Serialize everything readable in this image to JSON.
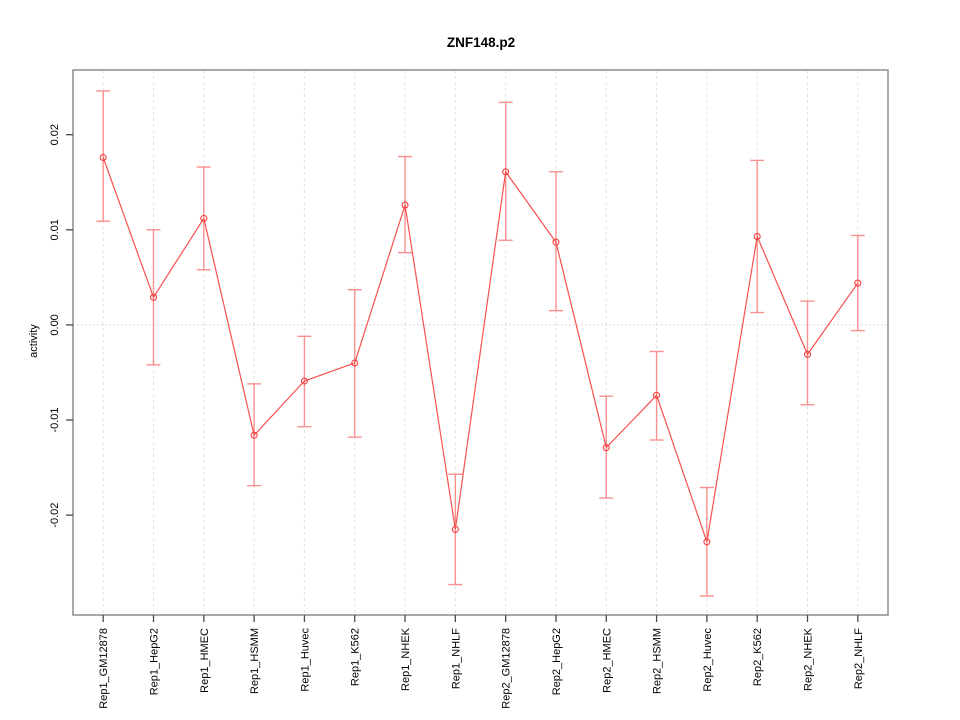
{
  "chart_data": {
    "type": "line",
    "title": "ZNF148.p2",
    "xlabel": "",
    "ylabel": "activity",
    "legend": "none",
    "point_style": "open-circle",
    "error_bars": true,
    "categories": [
      "Rep1_GM12878",
      "Rep1_HepG2",
      "Rep1_HMEC",
      "Rep1_HSMM",
      "Rep1_Huvec",
      "Rep1_K562",
      "Rep1_NHEK",
      "Rep1_NHLF",
      "Rep2_GM12878",
      "Rep2_HepG2",
      "Rep2_HMEC",
      "Rep2_HSMM",
      "Rep2_Huvec",
      "Rep2_K562",
      "Rep2_NHEK",
      "Rep2_NHLF"
    ],
    "series": [
      {
        "name": "activity",
        "values": [
          0.0176,
          0.0029,
          0.0112,
          -0.0116,
          -0.0059,
          -0.004,
          0.0126,
          -0.0215,
          0.0161,
          0.0087,
          -0.0129,
          -0.0074,
          -0.0228,
          0.0093,
          -0.0031,
          0.0044
        ],
        "upper": [
          0.0246,
          0.01,
          0.0166,
          -0.0062,
          -0.0012,
          0.0037,
          0.0177,
          -0.0157,
          0.0234,
          0.0161,
          -0.0075,
          -0.0028,
          -0.0171,
          0.0173,
          0.0025,
          0.0094
        ],
        "lower": [
          0.0109,
          -0.0042,
          0.0058,
          -0.0169,
          -0.0107,
          -0.0118,
          0.0076,
          -0.0273,
          0.0089,
          0.0015,
          -0.0182,
          -0.0121,
          -0.0285,
          0.0013,
          -0.0084,
          -0.0006
        ]
      }
    ],
    "ylim": [
      -0.0305,
      0.0268
    ],
    "yticks": [
      {
        "value": -0.02,
        "label": "-0.02"
      },
      {
        "value": -0.01,
        "label": "-0.01"
      },
      {
        "value": 0.0,
        "label": "0.00"
      },
      {
        "value": 0.01,
        "label": "0.01"
      },
      {
        "value": 0.02,
        "label": "0.02"
      }
    ],
    "grid": {
      "vertical_dashed_per_category": true,
      "horizontal_dotted_zero_line": true
    },
    "colors": {
      "point": "#f5403f",
      "line": "#f8504f",
      "error_bar": "#fb908f",
      "gridline": "#e2e2e2",
      "zero_line": "#cccccc",
      "frame": "#8c8c8c",
      "tick": "#4a4a4a",
      "label_text": "#000000",
      "background": "#ffffff"
    }
  }
}
